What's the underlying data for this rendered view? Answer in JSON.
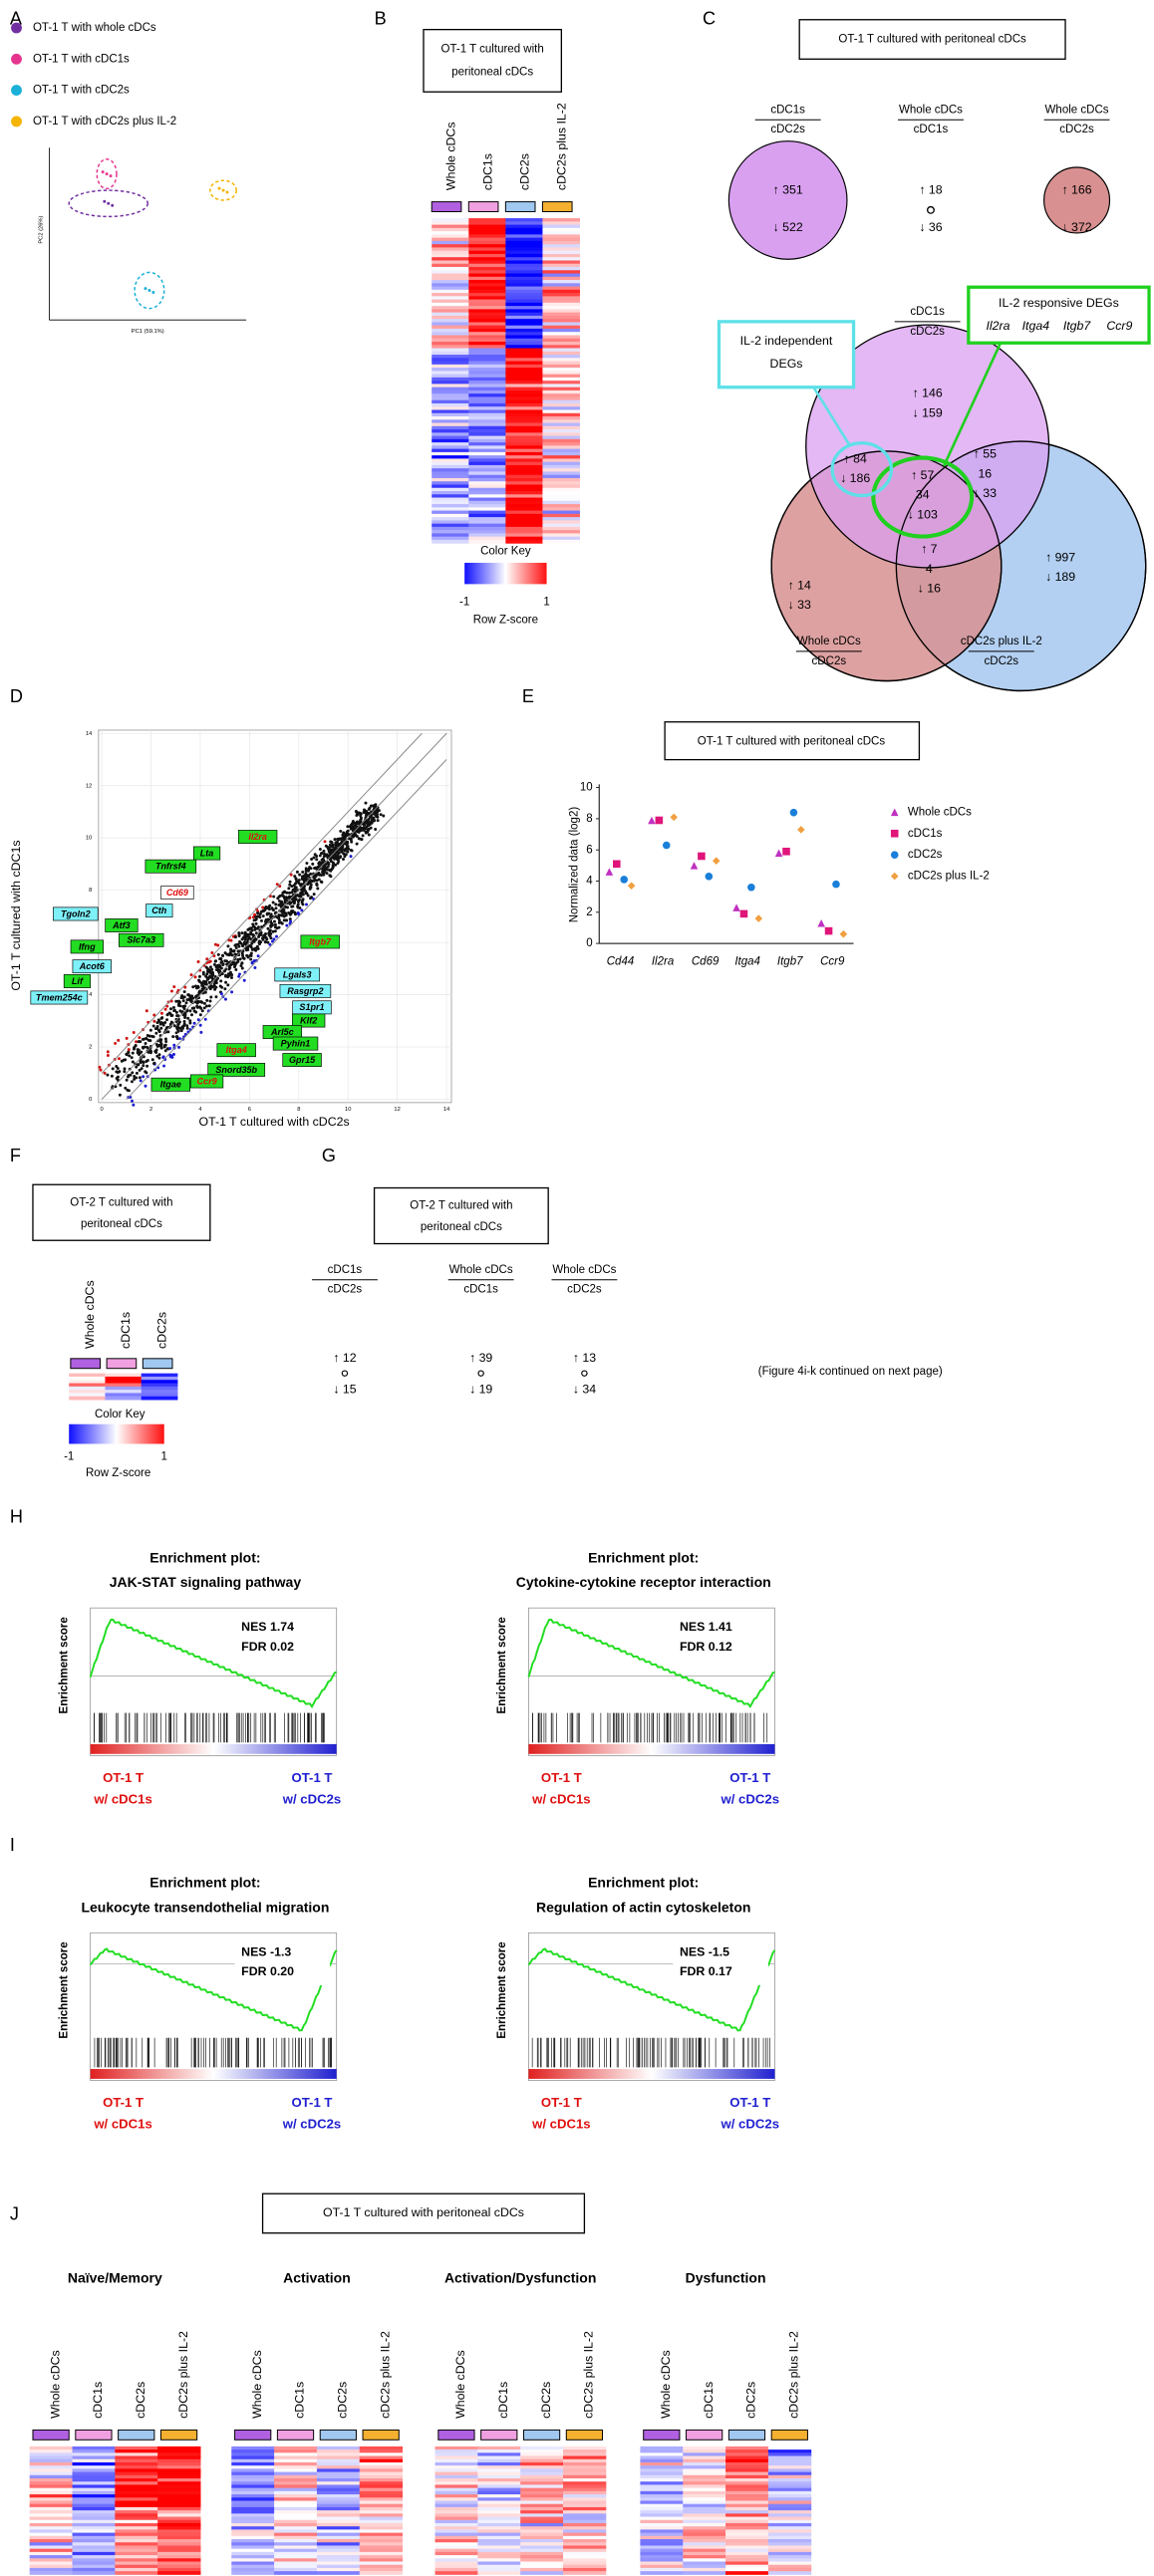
{
  "panels": {
    "A": {
      "letter": "A",
      "legend": [
        {
          "name": "OT-1 T with whole cDCs",
          "color": "#7030a0"
        },
        {
          "name": "OT-1 T with cDC1s",
          "color": "#e6358f"
        },
        {
          "name": "OT-1 T with cDC2s",
          "color": "#1ab0d8"
        },
        {
          "name": "OT-1 T with cDC2s plus IL-2",
          "color": "#f5b400"
        }
      ],
      "xlabel": "PC1 (59.1%)",
      "ylabel": "PC2 (26%)"
    },
    "B": {
      "letter": "B",
      "title": [
        "OT-1 T cultured with",
        "peritoneal cDCs"
      ],
      "columns": [
        "Whole cDCs",
        "cDC1s",
        "cDC2s",
        "cDC2s plus IL-2"
      ],
      "color_key": "Color Key",
      "key_min": -1,
      "key_max": 1,
      "key_label": "Row Z-score"
    },
    "C": {
      "letter": "C",
      "title": "OT-1 T cultured with peritoneal cDCs",
      "comparisons": [
        {
          "num": "cDC1s",
          "den": "cDC2s",
          "up": "↑ 351",
          "down": "↓ 522"
        },
        {
          "num": "Whole cDCs",
          "den": "cDC1s",
          "up": "↑ 18",
          "down": "↓ 36"
        },
        {
          "num": "Whole cDCs",
          "den": "cDC2s",
          "up": "↑ 166",
          "down": "↓ 372"
        }
      ],
      "venn": {
        "top": {
          "num": "cDC1s",
          "den": "cDC2s"
        },
        "left": {
          "num": "Whole cDCs",
          "den": "cDC2s"
        },
        "right": {
          "num": "cDC2s plus IL-2",
          "den": "cDC2s"
        },
        "box_independent": [
          "IL-2 independent",
          "DEGs"
        ],
        "box_responsive": "IL-2 responsive DEGs",
        "responsive_genes": [
          "Il2ra",
          "Itga4",
          "Itgb7",
          "Ccr9"
        ],
        "regions": [
          [
            "↑ 146",
            "↓ 159"
          ],
          [
            "↑ 84",
            "↓ 186"
          ],
          [
            "↑ 55",
            "16",
            "↓ 33"
          ],
          [
            "↑ 57",
            "34",
            "↓ 103"
          ],
          [
            "↑ 14",
            "↓ 33"
          ],
          [
            "↑ 7",
            "4",
            "↓ 16"
          ],
          [
            "↑ 997",
            "↓ 189"
          ]
        ]
      }
    },
    "D": {
      "letter": "D",
      "xlabel": "OT-1 T cultured with cDC2s",
      "ylabel": "OT-1 T cultured with cDC1s",
      "xticks": [
        0,
        2,
        4,
        6,
        8,
        10,
        12,
        14
      ],
      "yticks": [
        0,
        2,
        4,
        6,
        8,
        10,
        12,
        14
      ],
      "genes": [
        {
          "name": "Il2ra",
          "box": "green",
          "highlight": true
        },
        {
          "name": "Lta",
          "box": "green"
        },
        {
          "name": "Tnfrsf4",
          "box": "green"
        },
        {
          "name": "Cd69",
          "box": "white",
          "highlight": true
        },
        {
          "name": "Cth",
          "box": "cyan"
        },
        {
          "name": "Tgoln2",
          "box": "cyan"
        },
        {
          "name": "Atf3",
          "box": "green"
        },
        {
          "name": "Slc7a3",
          "box": "green"
        },
        {
          "name": "Ifng",
          "box": "green"
        },
        {
          "name": "Acot6",
          "box": "cyan"
        },
        {
          "name": "Lif",
          "box": "green"
        },
        {
          "name": "Tmem254c",
          "box": "cyan"
        },
        {
          "name": "Itgb7",
          "box": "green",
          "highlight": true
        },
        {
          "name": "Lgals3",
          "box": "cyan"
        },
        {
          "name": "Rasgrp2",
          "box": "cyan"
        },
        {
          "name": "S1pr1",
          "box": "cyan"
        },
        {
          "name": "Klf2",
          "box": "green"
        },
        {
          "name": "Arl5c",
          "box": "green"
        },
        {
          "name": "Itga4",
          "box": "green",
          "highlight": true
        },
        {
          "name": "Pyhin1",
          "box": "green"
        },
        {
          "name": "Gpr15",
          "box": "green"
        },
        {
          "name": "Snord35b",
          "box": "green"
        },
        {
          "name": "Ccr9",
          "box": "green",
          "highlight": true
        },
        {
          "name": "Itgae",
          "box": "green"
        }
      ]
    },
    "E": {
      "letter": "E"
    },
    "F": {
      "letter": "F",
      "title": [
        "OT-2 T cultured with",
        "peritoneal cDCs"
      ],
      "columns": [
        "Whole cDCs",
        "cDC1s",
        "cDC2s"
      ],
      "color_key": "Color Key",
      "key_min": -1,
      "key_max": 1,
      "key_label": "Row Z-score"
    },
    "G": {
      "letter": "G",
      "title": [
        "OT-2 T cultured with",
        "peritoneal cDCs"
      ],
      "comparisons": [
        {
          "num": "cDC1s",
          "den": "cDC2s",
          "up": "↑ 12",
          "down": "↓ 15"
        },
        {
          "num": "Whole cDCs",
          "den": "cDC1s",
          "up": "↑ 39",
          "down": "↓ 19"
        },
        {
          "num": "Whole cDCs",
          "den": "cDC2s",
          "up": "↑ 13",
          "down": "↓ 34"
        }
      ],
      "note": "(Figure 4i-k continued on next page)"
    },
    "H": {
      "letter": "H",
      "plots": [
        {
          "title": [
            "Enrichment plot:",
            "JAK-STAT signaling pathway"
          ],
          "nes": "NES 1.74",
          "fdr": "FDR 0.02"
        },
        {
          "title": [
            "Enrichment plot:",
            "Cytokine-cytokine receptor interaction"
          ],
          "nes": "NES 1.41",
          "fdr": "FDR 0.12"
        }
      ]
    },
    "I": {
      "letter": "I",
      "plots": [
        {
          "title": [
            "Enrichment plot:",
            "Leukocyte transendothelial migration"
          ],
          "nes": "NES -1.3",
          "fdr": "FDR 0.20"
        },
        {
          "title": [
            "Enrichment plot:",
            "Regulation of actin cytoskeleton"
          ],
          "nes": "NES -1.5",
          "fdr": "FDR 0.17"
        }
      ]
    },
    "gsea": {
      "ylabel": "Enrichment score",
      "left": [
        "OT-1 T",
        "w/ cDC1s"
      ],
      "right": [
        "OT-1 T",
        "w/ cDC2s"
      ]
    },
    "J": {
      "letter": "J",
      "title": "OT-1 T cultured with peritoneal cDCs",
      "groups": [
        "Naïve/Memory",
        "Activation",
        "Activation/Dysfunction",
        "Dysfunction"
      ],
      "columns": [
        "Whole cDCs",
        "cDC1s",
        "cDC2s",
        "cDC2s plus IL-2"
      ]
    }
  },
  "chart_data": {
    "type": "dot",
    "title": "OT-1 T cultured with peritoneal cDCs",
    "ylabel": "Normalized data (log2)",
    "categories": [
      "Cd44",
      "Il2ra",
      "Cd69",
      "Itga4",
      "Itgb7",
      "Ccr9"
    ],
    "ylim": [
      0,
      10
    ],
    "yticks": [
      0,
      2,
      4,
      6,
      8,
      10
    ],
    "series": [
      {
        "name": "Whole cDCs",
        "color": "#c030c0",
        "marker": "triangle",
        "values": [
          4.6,
          7.9,
          5.0,
          2.3,
          5.8,
          1.3
        ]
      },
      {
        "name": "cDC1s",
        "color": "#e0157a",
        "marker": "square",
        "values": [
          5.1,
          7.9,
          5.6,
          1.9,
          5.9,
          0.8
        ]
      },
      {
        "name": "cDC2s",
        "color": "#1a7fd8",
        "marker": "circle",
        "values": [
          4.1,
          6.3,
          4.3,
          3.6,
          8.4,
          3.8
        ]
      },
      {
        "name": "cDC2s plus IL-2",
        "color": "#f0a040",
        "marker": "diamond",
        "values": [
          3.7,
          8.1,
          5.3,
          1.6,
          7.3,
          0.6
        ]
      }
    ]
  }
}
